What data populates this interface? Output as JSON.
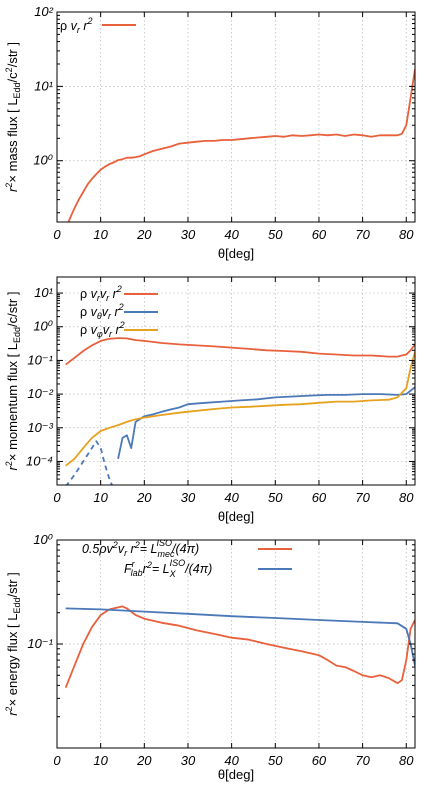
{
  "chart_data": [
    {
      "type": "line",
      "panel": "mass-flux",
      "ylabel": "r²× mass flux [ L_Edd/c²/str ]",
      "xlabel": "θ[deg]",
      "xlim": [
        0,
        82
      ],
      "ylim": [
        0.15,
        100
      ],
      "yscale": "log",
      "grid": true,
      "legend_position": "top-left",
      "xticks": [
        0,
        10,
        20,
        30,
        40,
        50,
        60,
        70,
        80
      ],
      "yticks": [
        1,
        10,
        100
      ],
      "ytick_labels": [
        "10⁰",
        "10¹",
        "10²"
      ],
      "series": [
        {
          "name": "ρ v_r r²",
          "color": "#e8603c",
          "style": "solid",
          "x": [
            2,
            3,
            4,
            5,
            6,
            7,
            8,
            9,
            10,
            11,
            12,
            13,
            14,
            15,
            16,
            17,
            18,
            19,
            20,
            22,
            24,
            26,
            28,
            30,
            32,
            34,
            36,
            38,
            40,
            42,
            44,
            46,
            48,
            50,
            52,
            54,
            56,
            58,
            60,
            62,
            64,
            66,
            68,
            70,
            72,
            74,
            76,
            78,
            79,
            80,
            81,
            82
          ],
          "y": [
            0.12,
            0.17,
            0.23,
            0.3,
            0.38,
            0.48,
            0.57,
            0.66,
            0.76,
            0.83,
            0.9,
            0.95,
            1.02,
            1.05,
            1.1,
            1.1,
            1.12,
            1.15,
            1.22,
            1.35,
            1.45,
            1.55,
            1.7,
            1.75,
            1.8,
            1.85,
            1.85,
            1.9,
            1.9,
            1.95,
            2.0,
            2.05,
            2.1,
            2.15,
            2.1,
            2.2,
            2.15,
            2.2,
            2.25,
            2.2,
            2.25,
            2.15,
            2.25,
            2.2,
            2.1,
            2.2,
            2.2,
            2.2,
            2.3,
            3.0,
            7.0,
            17.0
          ]
        }
      ]
    },
    {
      "type": "line",
      "panel": "momentum-flux",
      "ylabel": "r²× momentum flux [ L_Edd/c/str ]",
      "xlabel": "θ[deg]",
      "xlim": [
        0,
        82
      ],
      "ylim": [
        2e-05,
        30
      ],
      "yscale": "log",
      "grid": true,
      "legend_position": "top-left",
      "xticks": [
        0,
        10,
        20,
        30,
        40,
        50,
        60,
        70,
        80
      ],
      "yticks": [
        0.0001,
        0.001,
        0.01,
        0.1,
        1,
        10
      ],
      "ytick_labels": [
        "10⁻⁴",
        "10⁻³",
        "10⁻²",
        "10⁻¹",
        "10⁰",
        "10¹"
      ],
      "series": [
        {
          "name": "ρ v_r v_r r²",
          "color": "#e8603c",
          "style": "solid",
          "x": [
            2,
            4,
            6,
            8,
            10,
            12,
            14,
            16,
            18,
            20,
            24,
            28,
            32,
            36,
            40,
            44,
            48,
            52,
            56,
            60,
            64,
            68,
            72,
            76,
            78,
            79,
            80,
            81,
            82
          ],
          "y": [
            0.075,
            0.12,
            0.19,
            0.28,
            0.38,
            0.44,
            0.46,
            0.45,
            0.4,
            0.38,
            0.33,
            0.3,
            0.28,
            0.26,
            0.24,
            0.22,
            0.2,
            0.19,
            0.18,
            0.16,
            0.15,
            0.14,
            0.14,
            0.13,
            0.13,
            0.14,
            0.15,
            0.2,
            0.3
          ]
        },
        {
          "name": "ρ v_θ v_r r²",
          "color": "#4a78b8",
          "style": "solid",
          "x": [
            14,
            15,
            16,
            17,
            18,
            20,
            22,
            24,
            26,
            28,
            30,
            34,
            38,
            42,
            46,
            50,
            54,
            58,
            62,
            66,
            70,
            74,
            78,
            80,
            82
          ],
          "y": [
            0.00012,
            0.0005,
            0.0006,
            0.00025,
            0.0015,
            0.0022,
            0.0025,
            0.003,
            0.0035,
            0.004,
            0.005,
            0.0055,
            0.006,
            0.0065,
            0.007,
            0.008,
            0.0085,
            0.009,
            0.0095,
            0.0095,
            0.01,
            0.01,
            0.0095,
            0.01,
            0.016
          ]
        },
        {
          "name": "ρ v_θ v_r r² (negative)",
          "color": "#4a78b8",
          "style": "dashed",
          "x": [
            2,
            4,
            6,
            8,
            9,
            10,
            11,
            12,
            13
          ],
          "y": [
            1.8e-05,
            4e-05,
            0.0001,
            0.00025,
            0.0004,
            0.00025,
            8e-05,
            3e-05,
            1.5e-05
          ]
        },
        {
          "name": "ρ v_φ v_r r²",
          "color": "#e6a11f",
          "style": "solid",
          "x": [
            2,
            4,
            6,
            8,
            10,
            12,
            14,
            16,
            18,
            20,
            24,
            28,
            32,
            36,
            40,
            44,
            48,
            52,
            56,
            60,
            64,
            68,
            72,
            76,
            78,
            80,
            81,
            82
          ],
          "y": [
            7.5e-05,
            0.00012,
            0.00025,
            0.0005,
            0.0008,
            0.001,
            0.0012,
            0.0015,
            0.0018,
            0.002,
            0.0024,
            0.0028,
            0.0032,
            0.0036,
            0.004,
            0.0042,
            0.0045,
            0.0048,
            0.005,
            0.0055,
            0.006,
            0.006,
            0.0065,
            0.0068,
            0.008,
            0.015,
            0.06,
            0.18
          ]
        }
      ]
    },
    {
      "type": "line",
      "panel": "energy-flux",
      "ylabel": "r²× energy flux [ L_Edd/str ]",
      "xlabel": "θ[deg]",
      "xlim": [
        0,
        82
      ],
      "ylim": [
        0.01,
        1
      ],
      "yscale": "log",
      "grid": true,
      "legend_position": "top-left",
      "xticks": [
        0,
        10,
        20,
        30,
        40,
        50,
        60,
        70,
        80
      ],
      "yticks": [
        0.1,
        1
      ],
      "ytick_labels": [
        "10⁻¹",
        "10⁰"
      ],
      "series": [
        {
          "name": "0.5ρv²v_r r² = L_mec^ISO/(4π)",
          "color": "#e8603c",
          "style": "solid",
          "x": [
            2,
            4,
            6,
            8,
            10,
            12,
            14,
            15,
            16,
            18,
            20,
            24,
            28,
            32,
            36,
            40,
            44,
            48,
            52,
            56,
            60,
            62,
            64,
            66,
            68,
            70,
            72,
            74,
            76,
            78,
            79,
            80,
            81,
            82
          ],
          "y": [
            0.038,
            0.062,
            0.1,
            0.145,
            0.19,
            0.215,
            0.225,
            0.23,
            0.22,
            0.19,
            0.175,
            0.16,
            0.15,
            0.135,
            0.125,
            0.115,
            0.11,
            0.1,
            0.092,
            0.085,
            0.078,
            0.07,
            0.062,
            0.06,
            0.055,
            0.05,
            0.048,
            0.05,
            0.047,
            0.042,
            0.045,
            0.07,
            0.14,
            0.17
          ]
        },
        {
          "name": "F^r_lab r² = L_X^ISO/(4π)",
          "color": "#4a78b8",
          "style": "solid",
          "x": [
            2,
            10,
            20,
            30,
            40,
            50,
            60,
            70,
            78,
            80,
            81,
            82
          ],
          "y": [
            0.22,
            0.215,
            0.205,
            0.195,
            0.185,
            0.178,
            0.17,
            0.163,
            0.158,
            0.14,
            0.1,
            0.062
          ]
        }
      ]
    }
  ],
  "legends": {
    "panel1": [
      {
        "pre": "ρ ",
        "v": "v",
        "sub": "r",
        "r": " r",
        "sup": "2"
      }
    ],
    "panel2": [
      {
        "pre": "ρ ",
        "v1": "v",
        "sub1": "r",
        "v2": "v",
        "sub2": "r",
        "sup": "2"
      },
      {
        "pre": "ρ ",
        "v1": "v",
        "sub1": "θ",
        "v2": "v",
        "sub2": "r",
        "sup": "2"
      },
      {
        "pre": "ρ ",
        "v1": "v",
        "sub1": "φ",
        "v2": "v",
        "sub2": "r",
        "sup": "2"
      }
    ],
    "panel3": {
      "line1_lhs": "0.5ρv",
      "line1_vsup": "2",
      "line1_vr": "v",
      "line1_vrsub": "r",
      "line1_r": " r",
      "line1_rsup": "2",
      "line1_eq": "= L",
      "line1_lsub": "mec",
      "line1_lsup": "ISO",
      "line1_tail": "/(4π)",
      "line2_F": "F",
      "line2_Fsup": "r",
      "line2_Fsub": "lab",
      "line2_r": "r",
      "line2_rsup": "2",
      "line2_eq": "= L",
      "line2_lsub": "X",
      "line2_lsup": "ISO",
      "line2_tail": "/(4π)"
    }
  },
  "axis_text": {
    "xlabel": "θ[deg]",
    "ylabel1_pre": "r",
    "ylabel1_sup": "2",
    "ylabel1_mid": "× mass flux [ L",
    "ylabel1_sub": "Edd",
    "ylabel1_tail1": "/c",
    "ylabel1_sup2": "2",
    "ylabel1_tail2": "/str ]",
    "ylabel2_pre": "r",
    "ylabel2_sup": "2",
    "ylabel2_mid": "× momentum flux [ L",
    "ylabel2_sub": "Edd",
    "ylabel2_tail": "/c/str ]",
    "ylabel3_pre": "r",
    "ylabel3_sup": "2",
    "ylabel3_mid": "× energy flux [ L",
    "ylabel3_sub": "Edd",
    "ylabel3_tail": "/str ]"
  }
}
